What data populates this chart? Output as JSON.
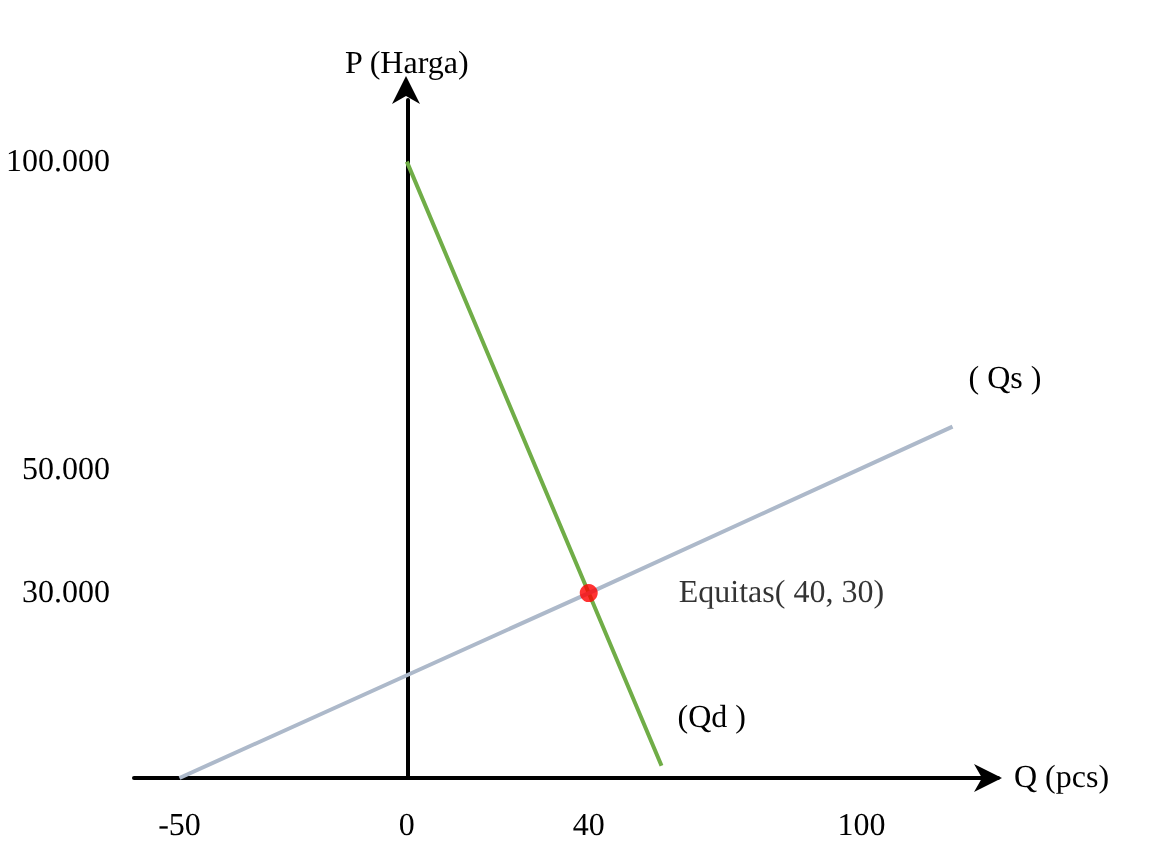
{
  "chart_data": {
    "type": "line",
    "xlabel": "Q (pcs)",
    "ylabel": "P (Harga)",
    "xlim": [
      -60,
      130
    ],
    "ylim": [
      0,
      110000
    ],
    "xticks": [
      -50,
      0,
      40,
      100
    ],
    "yticks": [
      {
        "value": 30000,
        "label": "30.000"
      },
      {
        "value": 50000,
        "label": "50.000"
      },
      {
        "value": 100000,
        "label": "100.000"
      }
    ],
    "marker": "none",
    "series": [
      {
        "name": "(Qd )",
        "color": "#70ad47",
        "x": [
          0,
          40,
          56
        ],
        "values": [
          100000,
          30000,
          2000
        ]
      },
      {
        "name": "( Qs )",
        "color": "#adb9ca",
        "x": [
          -50,
          40,
          120
        ],
        "values": [
          0,
          30000,
          57000
        ]
      },
      {
        "type": "scatter",
        "marker": "circle",
        "color": "#ff0000",
        "x": [
          40
        ],
        "values": [
          30000
        ]
      }
    ],
    "annotations": [
      {
        "text": "Equitas( 40, 30)",
        "x": 40,
        "y": 30000
      }
    ]
  }
}
